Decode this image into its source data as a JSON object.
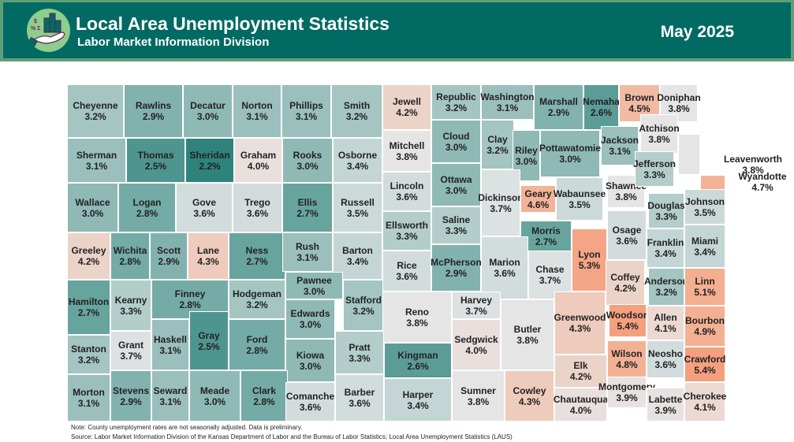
{
  "header": {
    "title": "Local Area Unemployment Statistics",
    "subtitle": "Labor Market Information Division",
    "date": "May 2025",
    "logo_icon": "hand-holding-bar-chart-icon",
    "header_color": "#016a62",
    "border_color": "#5f9f78"
  },
  "color_scale": {
    "low": "#2f837d",
    "mid": "#e5e5e5",
    "high": "#f4a07f"
  },
  "counties": [
    {
      "name": "Cheyenne",
      "rate": "3.2%"
    },
    {
      "name": "Rawlins",
      "rate": "2.9%"
    },
    {
      "name": "Decatur",
      "rate": "3.0%"
    },
    {
      "name": "Norton",
      "rate": "3.1%"
    },
    {
      "name": "Phillips",
      "rate": "3.1%"
    },
    {
      "name": "Smith",
      "rate": "3.2%"
    },
    {
      "name": "Jewell",
      "rate": "4.2%"
    },
    {
      "name": "Republic",
      "rate": "3.2%"
    },
    {
      "name": "Washington",
      "rate": "3.1%"
    },
    {
      "name": "Marshall",
      "rate": "2.9%"
    },
    {
      "name": "Nemaha",
      "rate": "2.6%"
    },
    {
      "name": "Brown",
      "rate": "4.5%"
    },
    {
      "name": "Doniphan",
      "rate": "3.8%"
    },
    {
      "name": "Sherman",
      "rate": "3.1%"
    },
    {
      "name": "Thomas",
      "rate": "2.5%"
    },
    {
      "name": "Sheridan",
      "rate": "2.2%"
    },
    {
      "name": "Graham",
      "rate": "4.0%"
    },
    {
      "name": "Rooks",
      "rate": "3.0%"
    },
    {
      "name": "Osborne",
      "rate": "3.4%"
    },
    {
      "name": "Mitchell",
      "rate": "3.8%"
    },
    {
      "name": "Cloud",
      "rate": "3.0%"
    },
    {
      "name": "Clay",
      "rate": "3.2%"
    },
    {
      "name": "Riley",
      "rate": "3.0%"
    },
    {
      "name": "Pottawatomie",
      "rate": "3.0%"
    },
    {
      "name": "Jackson",
      "rate": "3.1%"
    },
    {
      "name": "Atchison",
      "rate": "3.8%"
    },
    {
      "name": "Leavenworth",
      "rate": "3.8%"
    },
    {
      "name": "Wyandotte",
      "rate": "4.7%"
    },
    {
      "name": "Wallace",
      "rate": "3.0%"
    },
    {
      "name": "Logan",
      "rate": "2.8%"
    },
    {
      "name": "Gove",
      "rate": "3.6%"
    },
    {
      "name": "Trego",
      "rate": "3.6%"
    },
    {
      "name": "Ellis",
      "rate": "2.7%"
    },
    {
      "name": "Russell",
      "rate": "3.5%"
    },
    {
      "name": "Lincoln",
      "rate": "3.6%"
    },
    {
      "name": "Ottawa",
      "rate": "3.0%"
    },
    {
      "name": "Dickinson",
      "rate": "3.7%"
    },
    {
      "name": "Geary",
      "rate": "4.6%"
    },
    {
      "name": "Wabaunsee",
      "rate": "3.5%"
    },
    {
      "name": "Shawnee",
      "rate": "3.8%"
    },
    {
      "name": "Jefferson",
      "rate": "3.3%"
    },
    {
      "name": "Douglas",
      "rate": "3.3%"
    },
    {
      "name": "Johnson",
      "rate": "3.5%"
    },
    {
      "name": "Greeley",
      "rate": "4.2%"
    },
    {
      "name": "Wichita",
      "rate": "2.8%"
    },
    {
      "name": "Scott",
      "rate": "2.9%"
    },
    {
      "name": "Lane",
      "rate": "4.3%"
    },
    {
      "name": "Ness",
      "rate": "2.7%"
    },
    {
      "name": "Rush",
      "rate": "3.1%"
    },
    {
      "name": "Barton",
      "rate": "3.4%"
    },
    {
      "name": "Ellsworth",
      "rate": "3.3%"
    },
    {
      "name": "Saline",
      "rate": "3.3%"
    },
    {
      "name": "Morris",
      "rate": "2.7%"
    },
    {
      "name": "Lyon",
      "rate": "5.3%"
    },
    {
      "name": "Osage",
      "rate": "3.6%"
    },
    {
      "name": "Franklin",
      "rate": "3.4%"
    },
    {
      "name": "Miami",
      "rate": "3.4%"
    },
    {
      "name": "Hamilton",
      "rate": "2.7%"
    },
    {
      "name": "Kearny",
      "rate": "3.3%"
    },
    {
      "name": "Finney",
      "rate": "2.8%"
    },
    {
      "name": "Hodgeman",
      "rate": "3.2%"
    },
    {
      "name": "Pawnee",
      "rate": "3.0%"
    },
    {
      "name": "Stafford",
      "rate": "3.2%"
    },
    {
      "name": "Rice",
      "rate": "3.6%"
    },
    {
      "name": "McPherson",
      "rate": "2.9%"
    },
    {
      "name": "Marion",
      "rate": "3.6%"
    },
    {
      "name": "Chase",
      "rate": "3.7%"
    },
    {
      "name": "Coffey",
      "rate": "4.2%"
    },
    {
      "name": "Anderson",
      "rate": "3.2%"
    },
    {
      "name": "Linn",
      "rate": "5.1%"
    },
    {
      "name": "Edwards",
      "rate": "3.0%"
    },
    {
      "name": "Reno",
      "rate": "3.8%"
    },
    {
      "name": "Harvey",
      "rate": "3.7%"
    },
    {
      "name": "Butler",
      "rate": "3.8%"
    },
    {
      "name": "Greenwood",
      "rate": "4.3%"
    },
    {
      "name": "Woodson",
      "rate": "5.4%"
    },
    {
      "name": "Allen",
      "rate": "4.1%"
    },
    {
      "name": "Bourbon",
      "rate": "4.9%"
    },
    {
      "name": "Stanton",
      "rate": "3.2%"
    },
    {
      "name": "Grant",
      "rate": "3.7%"
    },
    {
      "name": "Haskell",
      "rate": "3.1%"
    },
    {
      "name": "Gray",
      "rate": "2.5%"
    },
    {
      "name": "Ford",
      "rate": "2.8%"
    },
    {
      "name": "Kiowa",
      "rate": "3.0%"
    },
    {
      "name": "Pratt",
      "rate": "3.3%"
    },
    {
      "name": "Kingman",
      "rate": "2.6%"
    },
    {
      "name": "Sedgwick",
      "rate": "4.0%"
    },
    {
      "name": "Elk",
      "rate": "4.2%"
    },
    {
      "name": "Wilson",
      "rate": "4.8%"
    },
    {
      "name": "Neosho",
      "rate": "3.6%"
    },
    {
      "name": "Crawford",
      "rate": "5.4%"
    },
    {
      "name": "Morton",
      "rate": "3.1%"
    },
    {
      "name": "Stevens",
      "rate": "2.9%"
    },
    {
      "name": "Seward",
      "rate": "3.1%"
    },
    {
      "name": "Meade",
      "rate": "3.0%"
    },
    {
      "name": "Clark",
      "rate": "2.8%"
    },
    {
      "name": "Comanche",
      "rate": "3.6%"
    },
    {
      "name": "Barber",
      "rate": "3.6%"
    },
    {
      "name": "Harper",
      "rate": "3.4%"
    },
    {
      "name": "Sumner",
      "rate": "3.8%"
    },
    {
      "name": "Cowley",
      "rate": "4.3%"
    },
    {
      "name": "Chautauqua",
      "rate": "4.0%"
    },
    {
      "name": "Montgomery",
      "rate": "3.9%"
    },
    {
      "name": "Labette",
      "rate": "3.9%"
    },
    {
      "name": "Cherokee",
      "rate": "4.1%"
    }
  ],
  "footer": {
    "note": "Note: County unemployment rates are not seasonally adjusted. Data is preliminary.",
    "source": "Source: Labor Market Information Division of the Kansas Department of Labor and the Bureau of Labor Statistics; Local Area Unemployment Statistics (LAUS)"
  }
}
